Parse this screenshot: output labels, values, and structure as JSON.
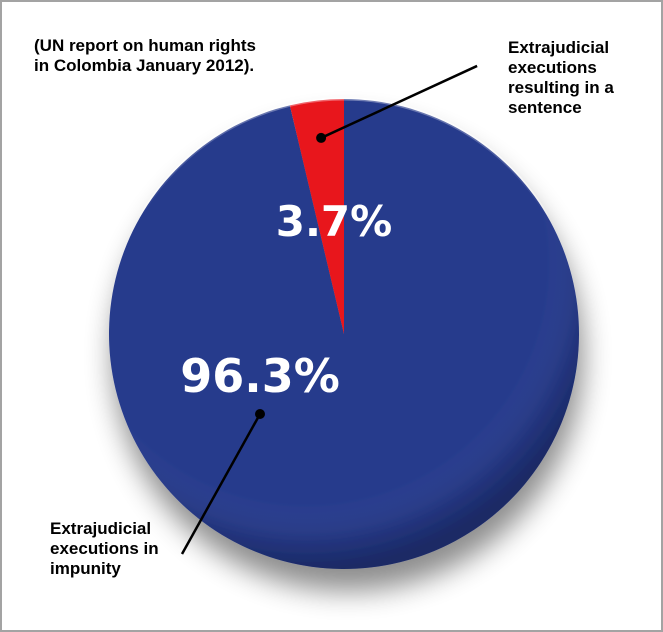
{
  "chart_data": {
    "type": "pie",
    "note": "(UN report on human rights in Colombia January 2012).",
    "slices": [
      {
        "label": "Extrajudicial executions resulting in a sentence",
        "value": 3.7,
        "value_label": "3.7%",
        "color": "#e8141e"
      },
      {
        "label": "Extrajudicial executions in impunity",
        "value": 96.3,
        "value_label": "96.3%",
        "color": "#263a8c"
      }
    ]
  }
}
